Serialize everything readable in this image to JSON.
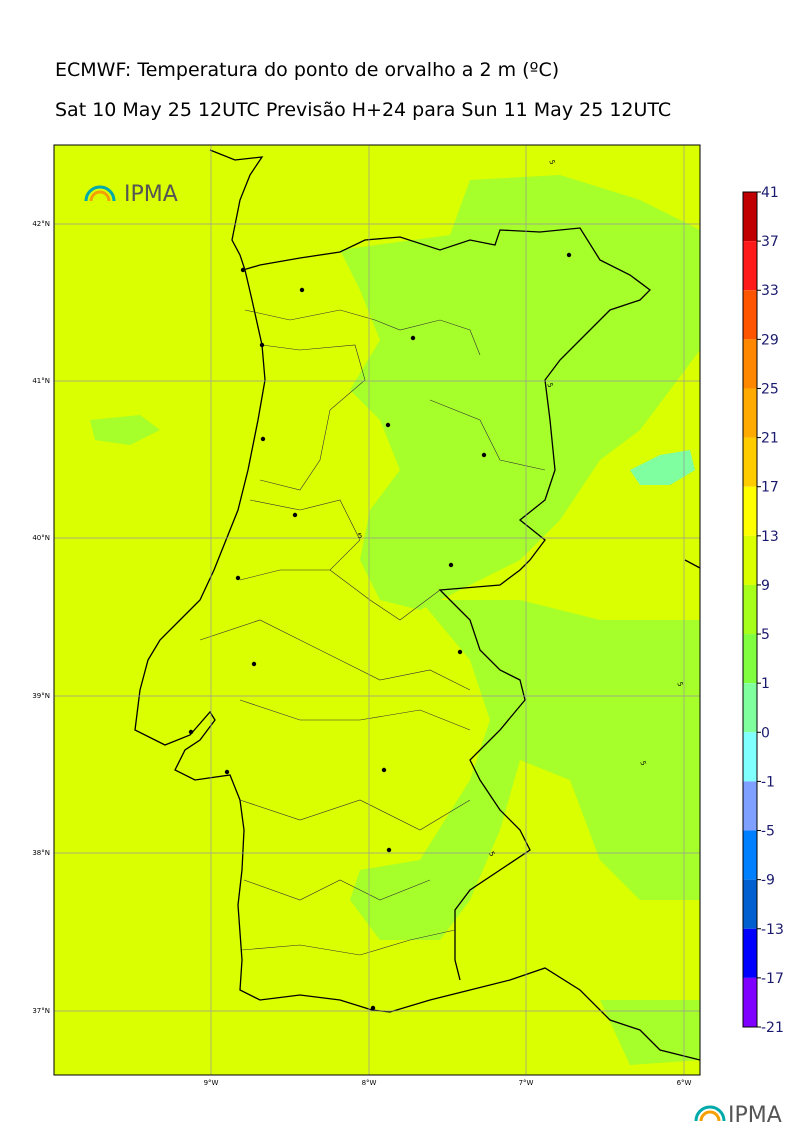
{
  "title": "ECMWF: Temperatura do ponto de orvalho a 2 m (ºC)",
  "subtitle": "Sat 10 May 25 12UTC Previsão H+24 para Sun 11 May 25 12UTC",
  "logo_top": "IPMA",
  "logo_bottom": "IPMA",
  "map": {
    "lat_labels": [
      "42°N",
      "41°N",
      "40°N",
      "39°N",
      "38°N",
      "37°N"
    ],
    "lon_labels": [
      "9°W",
      "8°W",
      "7°W",
      "6°W"
    ],
    "contour_labels": [
      "5",
      "5",
      "5",
      "5",
      "5",
      "5"
    ]
  },
  "colorbar": {
    "ticks": [
      41,
      37,
      33,
      29,
      25,
      21,
      17,
      13,
      9,
      5,
      1,
      0,
      -1,
      -5,
      -9,
      -13,
      -17,
      -21
    ],
    "colors": [
      "#c00000",
      "#ff1a1a",
      "#ff5500",
      "#ff8800",
      "#ffaa00",
      "#ffcc00",
      "#ffff00",
      "#d9ff00",
      "#a6ff1a",
      "#7fff40",
      "#80ff9f",
      "#80ffff",
      "#7fa0ff",
      "#0080ff",
      "#0060d0",
      "#0000ff",
      "#8000ff"
    ]
  }
}
